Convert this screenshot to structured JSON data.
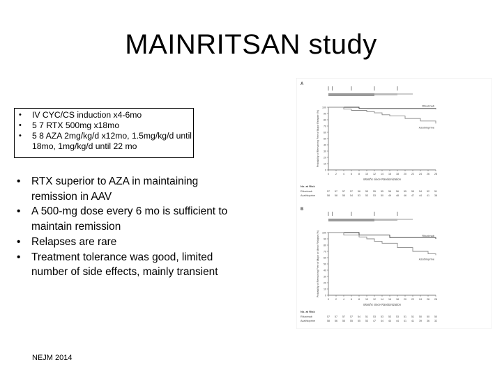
{
  "slide": {
    "title": "MAINRITSAN study",
    "box_bullets": [
      "IV CYC/CS induction x4-6mo",
      "5 7 RTX 500mg x18mo",
      "5 8 AZA 2mg/kg/d x12mo, 1.5mg/kg/d until 18mo, 1mg/kg/d until 22 mo"
    ],
    "main_bullets": [
      "RTX superior to AZA in maintaining remission in AAV",
      "A 500-mg dose every 6 mo is sufficient to maintain remission",
      "Relapses are rare",
      "Treatment tolerance was good, limited number of side effects, mainly transient"
    ],
    "reference": "NEJM 2014"
  },
  "figure": {
    "panels": [
      {
        "label": "A",
        "rituximab_label": "Rituximab",
        "azathioprine_label": "Azathioprine",
        "at_risk_title": "No. at Risk",
        "at_risk_rituximab": [
          "57",
          "57",
          "57",
          "57",
          "56",
          "55",
          "55",
          "55",
          "56",
          "56",
          "55",
          "55",
          "54",
          "52",
          "51"
        ],
        "at_risk_azathioprine": [
          "58",
          "58",
          "55",
          "54",
          "53",
          "53",
          "53",
          "50",
          "49",
          "48",
          "46",
          "47",
          "44",
          "41",
          "38"
        ],
        "x_axis_title": "Months since Randomization"
      },
      {
        "label": "B",
        "rituximab_label": "Rituximab",
        "azathioprine_label": "Azathioprine",
        "at_risk_title": "No. at Risk",
        "at_risk_rituximab": [
          "57",
          "57",
          "57",
          "57",
          "54",
          "51",
          "53",
          "53",
          "53",
          "53",
          "51",
          "51",
          "50",
          "50",
          "50"
        ],
        "at_risk_azathioprine": [
          "58",
          "56",
          "55",
          "55",
          "55",
          "53",
          "47",
          "44",
          "44",
          "44",
          "41",
          "41",
          "39",
          "36",
          "32"
        ],
        "x_axis_title": "Months since Randomization"
      }
    ],
    "y_ticks": [
      "100",
      "90",
      "80",
      "70",
      "60",
      "50",
      "40",
      "30",
      "20",
      "10",
      "0"
    ],
    "x_ticks": [
      "0",
      "2",
      "4",
      "6",
      "8",
      "10",
      "12",
      "14",
      "16",
      "18",
      "20",
      "22",
      "24",
      "26",
      "28"
    ],
    "chart_data": [
      {
        "type": "line",
        "title": "",
        "xlabel": "Months since Randomization",
        "ylabel": "Probability of Remaining Free of Major Relapse (%)",
        "xlim": [
          0,
          28
        ],
        "ylim": [
          0,
          100
        ],
        "series": [
          {
            "name": "Rituximab",
            "x": [
              0,
              8,
              28
            ],
            "y": [
              100,
              98,
              97
            ]
          },
          {
            "name": "Azathioprine",
            "x": [
              0,
              4,
              6,
              10,
              12,
              14,
              16,
              20,
              24,
              28
            ],
            "y": [
              100,
              97,
              95,
              93,
              91,
              88,
              86,
              82,
              78,
              74
            ]
          }
        ]
      },
      {
        "type": "line",
        "title": "",
        "xlabel": "Months since Randomization",
        "ylabel": "Probability of Remaining Free of Major or Minor Relapse (%)",
        "xlim": [
          0,
          28
        ],
        "ylim": [
          0,
          100
        ],
        "series": [
          {
            "name": "Rituximab",
            "x": [
              0,
              8,
              16,
              28
            ],
            "y": [
              100,
              96,
              92,
              90
            ]
          },
          {
            "name": "Azathioprine",
            "x": [
              0,
              4,
              8,
              10,
              12,
              14,
              18,
              22,
              26,
              28
            ],
            "y": [
              100,
              96,
              93,
              90,
              86,
              83,
              76,
              70,
              66,
              64
            ]
          }
        ]
      }
    ]
  }
}
